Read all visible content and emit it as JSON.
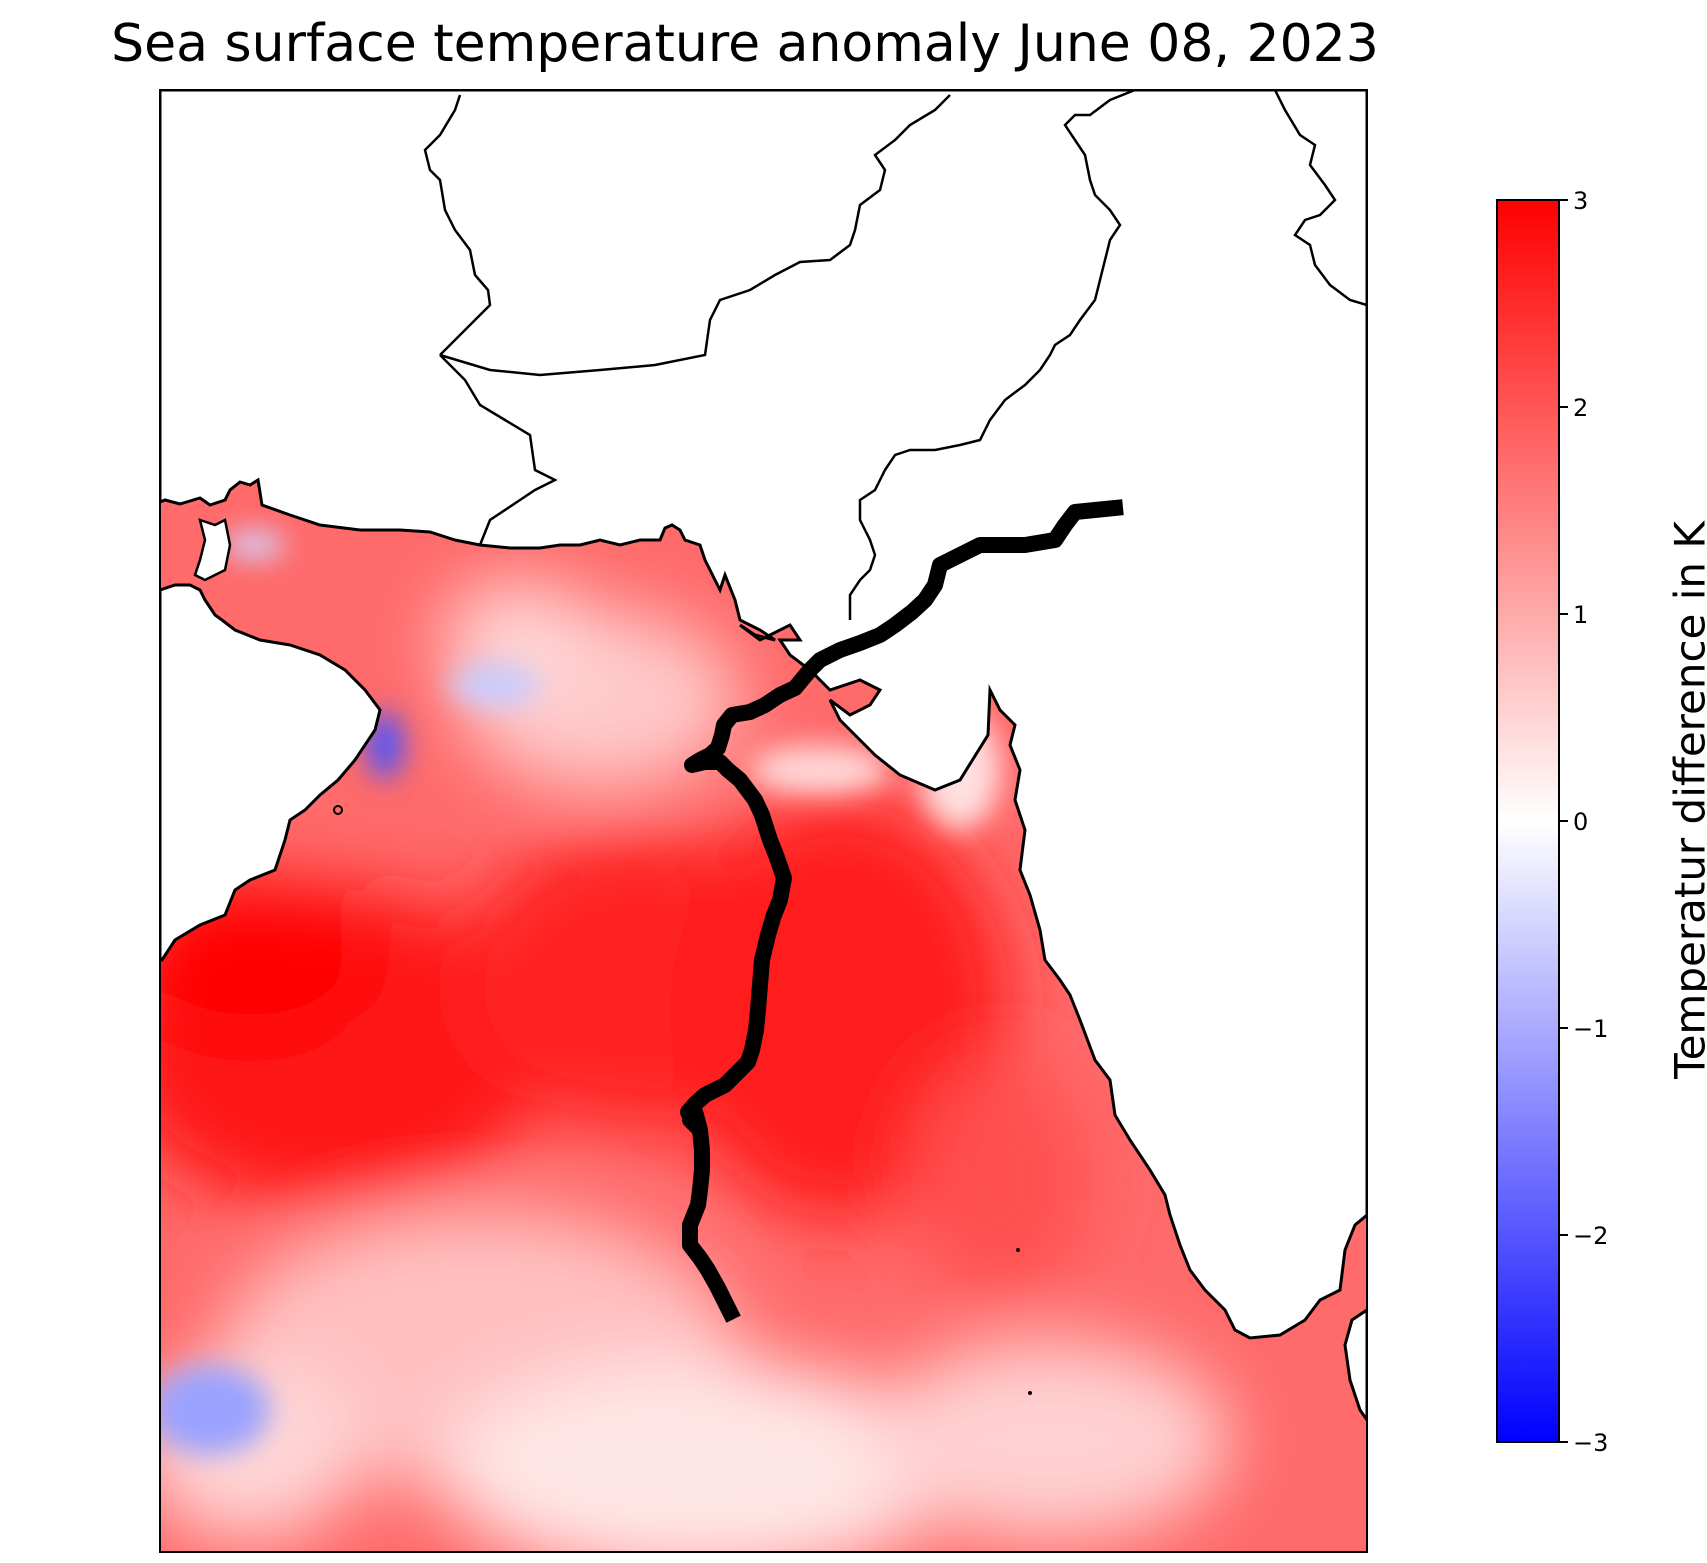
{
  "title": "Sea surface temperature anomaly June 08, 2023",
  "colorbar": {
    "label": "Temperatur difference in K",
    "ticks": [
      "3",
      "2",
      "1",
      "0",
      "−1",
      "−2",
      "−3"
    ],
    "min": -3,
    "max": 3,
    "colors": {
      "high": "#ff0000",
      "mid": "#ffffff",
      "low": "#0000ff"
    }
  },
  "map": {
    "land_color": "#ffffff",
    "coast_color": "#000000",
    "track_color": "#000000"
  }
}
